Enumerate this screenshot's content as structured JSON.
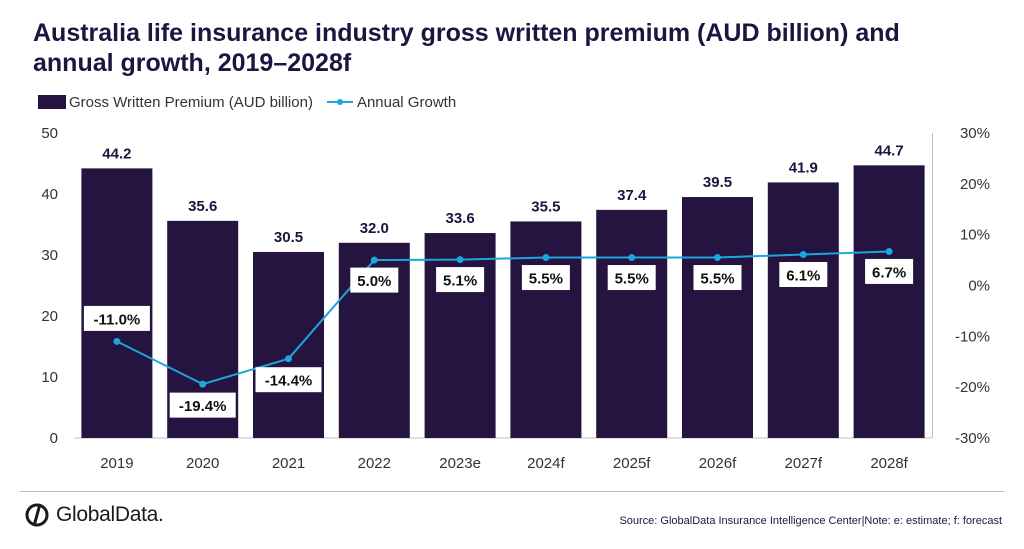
{
  "chart_data": {
    "type": "bar",
    "title": "Australia life insurance industry gross written premium (AUD billion) and annual growth, 2019–2028f",
    "categories": [
      "2019",
      "2020",
      "2021",
      "2022",
      "2023e",
      "2024f",
      "2025f",
      "2026f",
      "2027f",
      "2028f"
    ],
    "series": [
      {
        "name": "Gross Written Premium (AUD billion)",
        "type": "bar",
        "axis": "left",
        "values": [
          44.2,
          35.6,
          30.5,
          32.0,
          33.6,
          35.5,
          37.4,
          39.5,
          41.9,
          44.7
        ],
        "labels": [
          "44.2",
          "35.6",
          "30.5",
          "32.0",
          "33.6",
          "35.5",
          "37.4",
          "39.5",
          "41.9",
          "44.7"
        ]
      },
      {
        "name": "Annual Growth",
        "type": "line",
        "axis": "right",
        "values": [
          -11.0,
          -19.4,
          -14.4,
          5.0,
          5.1,
          5.5,
          5.5,
          5.5,
          6.1,
          6.7
        ],
        "labels": [
          "-11.0%",
          "-19.4%",
          "-14.4%",
          "5.0%",
          "5.1%",
          "5.5%",
          "5.5%",
          "5.5%",
          "6.1%",
          "6.7%"
        ]
      }
    ],
    "y_left": {
      "range": [
        0,
        50
      ],
      "ticks": [
        "0",
        "10",
        "20",
        "30",
        "40",
        "50"
      ]
    },
    "y_right": {
      "range": [
        -30,
        30
      ],
      "ticks": [
        "-30%",
        "-20%",
        "-10%",
        "0%",
        "10%",
        "20%",
        "30%"
      ]
    },
    "grid": false,
    "legend_position": "top-left",
    "colors": {
      "bar": "#24143f",
      "line": "#1ba6dd",
      "text": "#1e1440"
    }
  },
  "footer": {
    "brand": "GlobalData.",
    "source": "Source:  GlobalData Insurance Intelligence Center|Note: e: estimate; f: forecast",
    "logo_icon": "globaldata-logo-icon"
  }
}
